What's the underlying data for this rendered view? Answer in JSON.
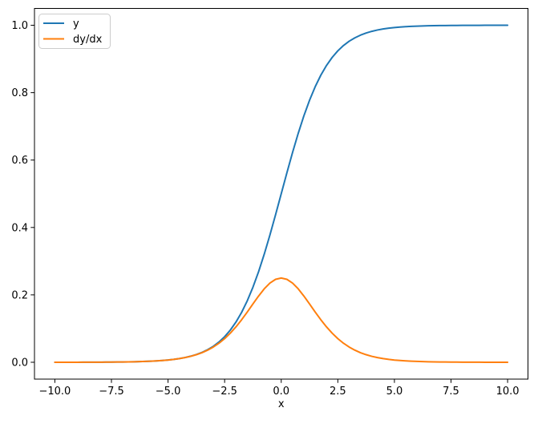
{
  "figure": {
    "background": "#ffffff"
  },
  "chart_data": {
    "type": "line",
    "title": "",
    "xlabel": "x",
    "ylabel": "",
    "grid": false,
    "axis_color": "#000000",
    "xlim": [
      -10.9,
      10.9
    ],
    "ylim": [
      -0.05,
      1.05
    ],
    "xticks": {
      "values": [
        -10,
        -7.5,
        -5,
        -2.5,
        0,
        2.5,
        5,
        7.5,
        10
      ],
      "labels": [
        "−10.0",
        "−7.5",
        "−5.0",
        "−2.5",
        "0.0",
        "2.5",
        "5.0",
        "7.5",
        "10.0"
      ]
    },
    "yticks": {
      "values": [
        0,
        0.2,
        0.4,
        0.6,
        0.8,
        1.0
      ],
      "labels": [
        "0.0",
        "0.2",
        "0.4",
        "0.6",
        "0.8",
        "1.0"
      ]
    },
    "legend": {
      "position": "upper-left",
      "border_color": "#cccccc",
      "background": "#ffffff",
      "entries": [
        "y",
        "dy/dx"
      ]
    },
    "x": [
      -10,
      -9.75,
      -9.5,
      -9.25,
      -9,
      -8.75,
      -8.5,
      -8.25,
      -8,
      -7.75,
      -7.5,
      -7.25,
      -7,
      -6.75,
      -6.5,
      -6.25,
      -6,
      -5.75,
      -5.5,
      -5.25,
      -5,
      -4.75,
      -4.5,
      -4.25,
      -4,
      -3.75,
      -3.5,
      -3.25,
      -3,
      -2.75,
      -2.5,
      -2.25,
      -2,
      -1.75,
      -1.5,
      -1.25,
      -1,
      -0.75,
      -0.5,
      -0.25,
      0,
      0.25,
      0.5,
      0.75,
      1,
      1.25,
      1.5,
      1.75,
      2,
      2.25,
      2.5,
      2.75,
      3,
      3.25,
      3.5,
      3.75,
      4,
      4.25,
      4.5,
      4.75,
      5,
      5.25,
      5.5,
      5.75,
      6,
      6.25,
      6.5,
      6.75,
      7,
      7.25,
      7.5,
      7.75,
      8,
      8.25,
      8.5,
      8.75,
      9,
      9.25,
      9.5,
      9.75,
      10
    ],
    "series": [
      {
        "name": "y",
        "color": "#1f77b4",
        "values": [
          0.0,
          0.0001,
          0.0001,
          0.0001,
          0.0001,
          0.0002,
          0.0002,
          0.0003,
          0.0003,
          0.0004,
          0.0006,
          0.0007,
          0.0009,
          0.0012,
          0.0015,
          0.0019,
          0.0025,
          0.0032,
          0.0041,
          0.0052,
          0.0067,
          0.0086,
          0.011,
          0.0141,
          0.018,
          0.023,
          0.0293,
          0.0374,
          0.0474,
          0.0601,
          0.0759,
          0.0954,
          0.1192,
          0.148,
          0.1824,
          0.2227,
          0.2689,
          0.3208,
          0.3775,
          0.4378,
          0.5,
          0.5622,
          0.6225,
          0.6792,
          0.7311,
          0.7773,
          0.8176,
          0.852,
          0.8808,
          0.9046,
          0.9241,
          0.9399,
          0.9526,
          0.9626,
          0.9707,
          0.977,
          0.982,
          0.9859,
          0.989,
          0.9914,
          0.9933,
          0.9948,
          0.9959,
          0.9968,
          0.9975,
          0.9981,
          0.9985,
          0.9988,
          0.9991,
          0.9993,
          0.9994,
          0.9996,
          0.9997,
          0.9997,
          0.9998,
          0.9998,
          0.9999,
          0.9999,
          0.9999,
          0.9999,
          1.0
        ]
      },
      {
        "name": "dy/dx",
        "color": "#ff7f0e",
        "values": [
          0.0,
          0.0001,
          0.0001,
          0.0001,
          0.0001,
          0.0002,
          0.0002,
          0.0003,
          0.0003,
          0.0004,
          0.0006,
          0.0007,
          0.0009,
          0.0012,
          0.0015,
          0.0019,
          0.0025,
          0.0032,
          0.0041,
          0.0052,
          0.0066,
          0.0085,
          0.0109,
          0.0139,
          0.0177,
          0.0225,
          0.0284,
          0.036,
          0.0452,
          0.0565,
          0.0701,
          0.0863,
          0.105,
          0.1261,
          0.1491,
          0.1731,
          0.1966,
          0.2179,
          0.235,
          0.2461,
          0.25,
          0.2461,
          0.235,
          0.2179,
          0.1966,
          0.1731,
          0.1491,
          0.1261,
          0.105,
          0.0863,
          0.0701,
          0.0565,
          0.0452,
          0.036,
          0.0284,
          0.0225,
          0.0177,
          0.0139,
          0.0109,
          0.0085,
          0.0066,
          0.0052,
          0.0041,
          0.0032,
          0.0025,
          0.0019,
          0.0015,
          0.0012,
          0.0009,
          0.0007,
          0.0006,
          0.0004,
          0.0003,
          0.0003,
          0.0002,
          0.0002,
          0.0001,
          0.0001,
          0.0001,
          0.0001,
          0.0
        ]
      }
    ]
  }
}
